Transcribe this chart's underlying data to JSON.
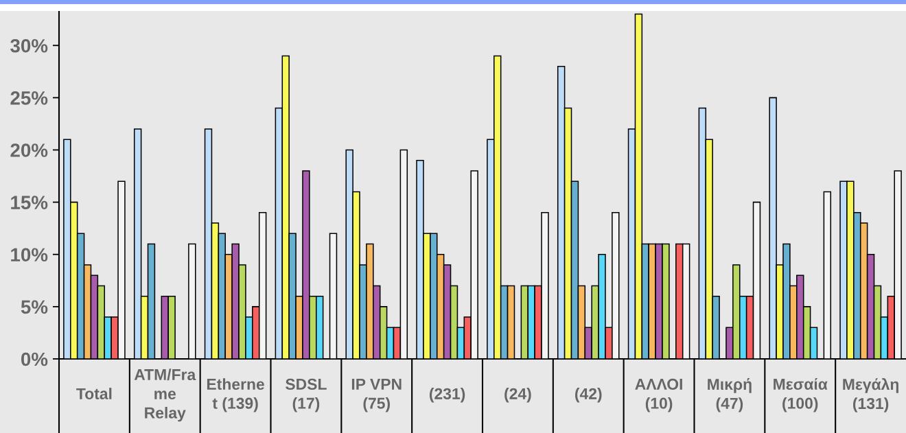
{
  "chart_data": {
    "type": "bar",
    "categories": [
      "Total",
      "ATM/Fra\nme\nRelay",
      "Etherne\nt (139)",
      "SDSL\n(17)",
      "IP VPN\n(75)",
      "(231)",
      "(24)",
      "(42)",
      "ΑΛΛΟΙ\n(10)",
      "Μικρή\n(47)",
      "Μεσαία\n(100)",
      "Μεγάλη\n(131)"
    ],
    "series": [
      {
        "color": "#bcdcf8",
        "values": [
          21,
          22,
          22,
          24,
          20,
          19,
          21,
          28,
          22,
          24,
          25,
          17
        ]
      },
      {
        "color": "#f8f858",
        "values": [
          15,
          6,
          13,
          29,
          16,
          12,
          29,
          24,
          33,
          21,
          9,
          17
        ]
      },
      {
        "color": "#68b0d0",
        "values": [
          12,
          11,
          12,
          12,
          9,
          12,
          7,
          17,
          11,
          6,
          11,
          14
        ]
      },
      {
        "color": "#f8b860",
        "values": [
          9,
          null,
          10,
          6,
          11,
          10,
          7,
          7,
          11,
          null,
          7,
          13
        ]
      },
      {
        "color": "#a85cac",
        "values": [
          8,
          6,
          11,
          18,
          7,
          9,
          null,
          3,
          11,
          3,
          8,
          10
        ]
      },
      {
        "color": "#b8d860",
        "values": [
          7,
          6,
          9,
          6,
          5,
          7,
          7,
          7,
          11,
          9,
          5,
          7
        ]
      },
      {
        "color": "#58d8f8",
        "values": [
          4,
          null,
          4,
          6,
          3,
          3,
          7,
          10,
          null,
          6,
          3,
          4
        ]
      },
      {
        "color": "#f86060",
        "values": [
          4,
          null,
          5,
          null,
          3,
          4,
          7,
          3,
          11,
          6,
          null,
          6
        ]
      },
      {
        "color": "#f4f4f4",
        "values": [
          17,
          11,
          14,
          12,
          20,
          18,
          14,
          14,
          11,
          15,
          16,
          18
        ]
      }
    ],
    "ylim": [
      0,
      33.3
    ],
    "yticks": [
      {
        "value": 0,
        "label": "0%"
      },
      {
        "value": 5,
        "label": "5%"
      },
      {
        "value": 10,
        "label": "10%"
      },
      {
        "value": 15,
        "label": "15%"
      },
      {
        "value": 20,
        "label": "20%"
      },
      {
        "value": 25,
        "label": "25%"
      },
      {
        "value": 30,
        "label": "30%"
      }
    ]
  }
}
